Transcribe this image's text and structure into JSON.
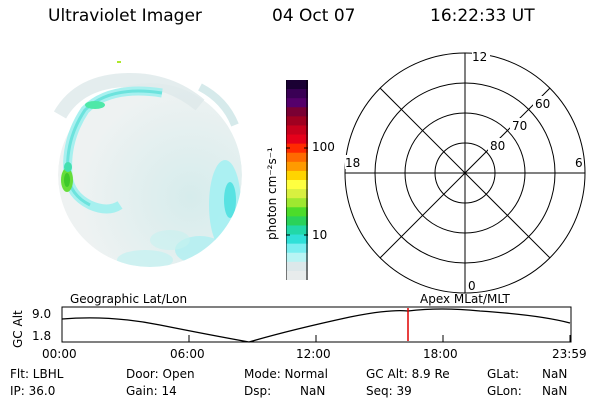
{
  "header": {
    "instrument": "Ultraviolet Imager",
    "date": "04 Oct 07",
    "time": "16:22:33 UT"
  },
  "colorbar": {
    "label": "photon cm⁻²s⁻¹",
    "ticks": [
      "100",
      "10"
    ],
    "colors": [
      "#1a0033",
      "#3a0055",
      "#55006b",
      "#7a0033",
      "#a00020",
      "#c8001c",
      "#e6001a",
      "#ff2a00",
      "#ff6a00",
      "#ff9a00",
      "#ffd400",
      "#ffff40",
      "#d8f040",
      "#9ee830",
      "#4cdc2a",
      "#2ad25a",
      "#22d8a8",
      "#30e0d8",
      "#7aeef0",
      "#b8f4f4",
      "#dce8ea",
      "#e8ecec"
    ]
  },
  "polar_grid": {
    "mlt_labels": {
      "top": "12",
      "left": "18",
      "right": "6",
      "bottom": "0"
    },
    "lat_labels": [
      "60",
      "70",
      "80"
    ]
  },
  "timeline": {
    "left_label": "Geographic Lat/Lon",
    "right_label": "Apex  MLat/MLT",
    "axis_title": "GC Alt",
    "y_ticks": [
      "9.0",
      "1.8"
    ],
    "x_ticks": [
      "00:00",
      "06:00",
      "12:00",
      "18:00",
      "23:59"
    ],
    "marker_color": "#e00000"
  },
  "status": {
    "flt": "Flt: LBHL",
    "ip": "IP: 36.0",
    "door": "Door: Open",
    "gain": "Gain: 14",
    "mode": "Mode: Normal",
    "dsp_label": "Dsp:",
    "dsp_value": "NaN",
    "gc_alt": "GC Alt: 8.9 Re",
    "seq": "Seq: 39",
    "glat_label": "GLat:",
    "glat_value": "NaN",
    "glon_label": "GLon:",
    "glon_value": "NaN"
  }
}
